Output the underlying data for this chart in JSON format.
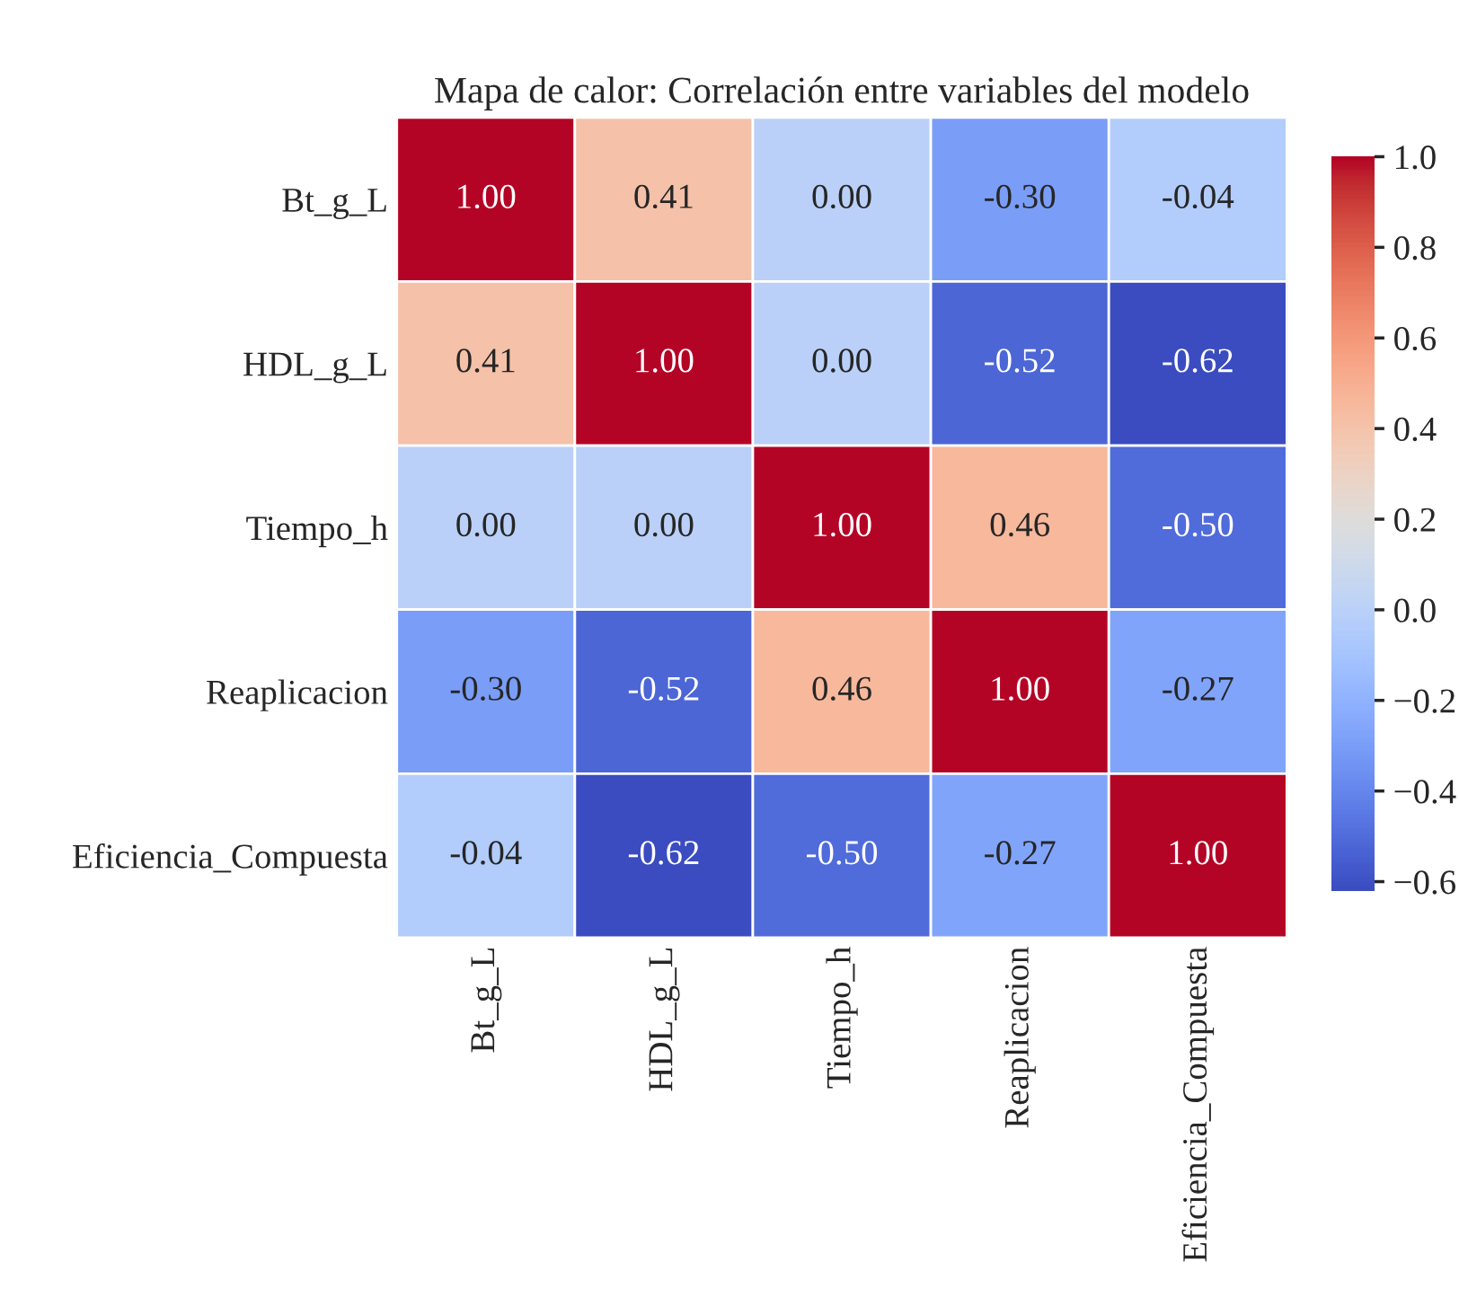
{
  "chart_data": {
    "type": "heatmap",
    "title": "Mapa de calor: Correlación entre variables del modelo",
    "categories": [
      "Bt_g_L",
      "HDL_g_L",
      "Tiempo_h",
      "Reaplicacion",
      "Eficiencia_Compuesta"
    ],
    "y_categories": [
      "Bt_g_L",
      "HDL_g_L",
      "Tiempo_h",
      "Reaplicacion",
      "Eficiencia_Compuesta"
    ],
    "cells": [
      [
        1.0,
        0.41,
        0.0,
        -0.3,
        -0.04
      ],
      [
        0.41,
        1.0,
        0.0,
        -0.52,
        -0.62
      ],
      [
        0.0,
        0.0,
        1.0,
        0.46,
        -0.5
      ],
      [
        -0.3,
        -0.52,
        0.46,
        1.0,
        -0.27
      ],
      [
        -0.04,
        -0.62,
        -0.5,
        -0.27,
        1.0
      ]
    ],
    "cell_labels": [
      [
        "1.00",
        "0.41",
        "0.00",
        "-0.30",
        "-0.04"
      ],
      [
        "0.41",
        "1.00",
        "0.00",
        "-0.52",
        "-0.62"
      ],
      [
        "0.00",
        "0.00",
        "1.00",
        "0.46",
        "-0.50"
      ],
      [
        "-0.30",
        "-0.52",
        "0.46",
        "1.00",
        "-0.27"
      ],
      [
        "-0.04",
        "-0.62",
        "-0.50",
        "-0.27",
        "1.00"
      ]
    ],
    "clim": [
      -0.62,
      1.0
    ],
    "cticks": [
      {
        "value": -0.6,
        "label": "−0.6"
      },
      {
        "value": -0.4,
        "label": "−0.4"
      },
      {
        "value": -0.2,
        "label": "−0.2"
      },
      {
        "value": 0.0,
        "label": "0.0"
      },
      0.2,
      0.4,
      0.6,
      0.8,
      {
        "value": 1.0,
        "label": "1.0"
      }
    ]
  }
}
